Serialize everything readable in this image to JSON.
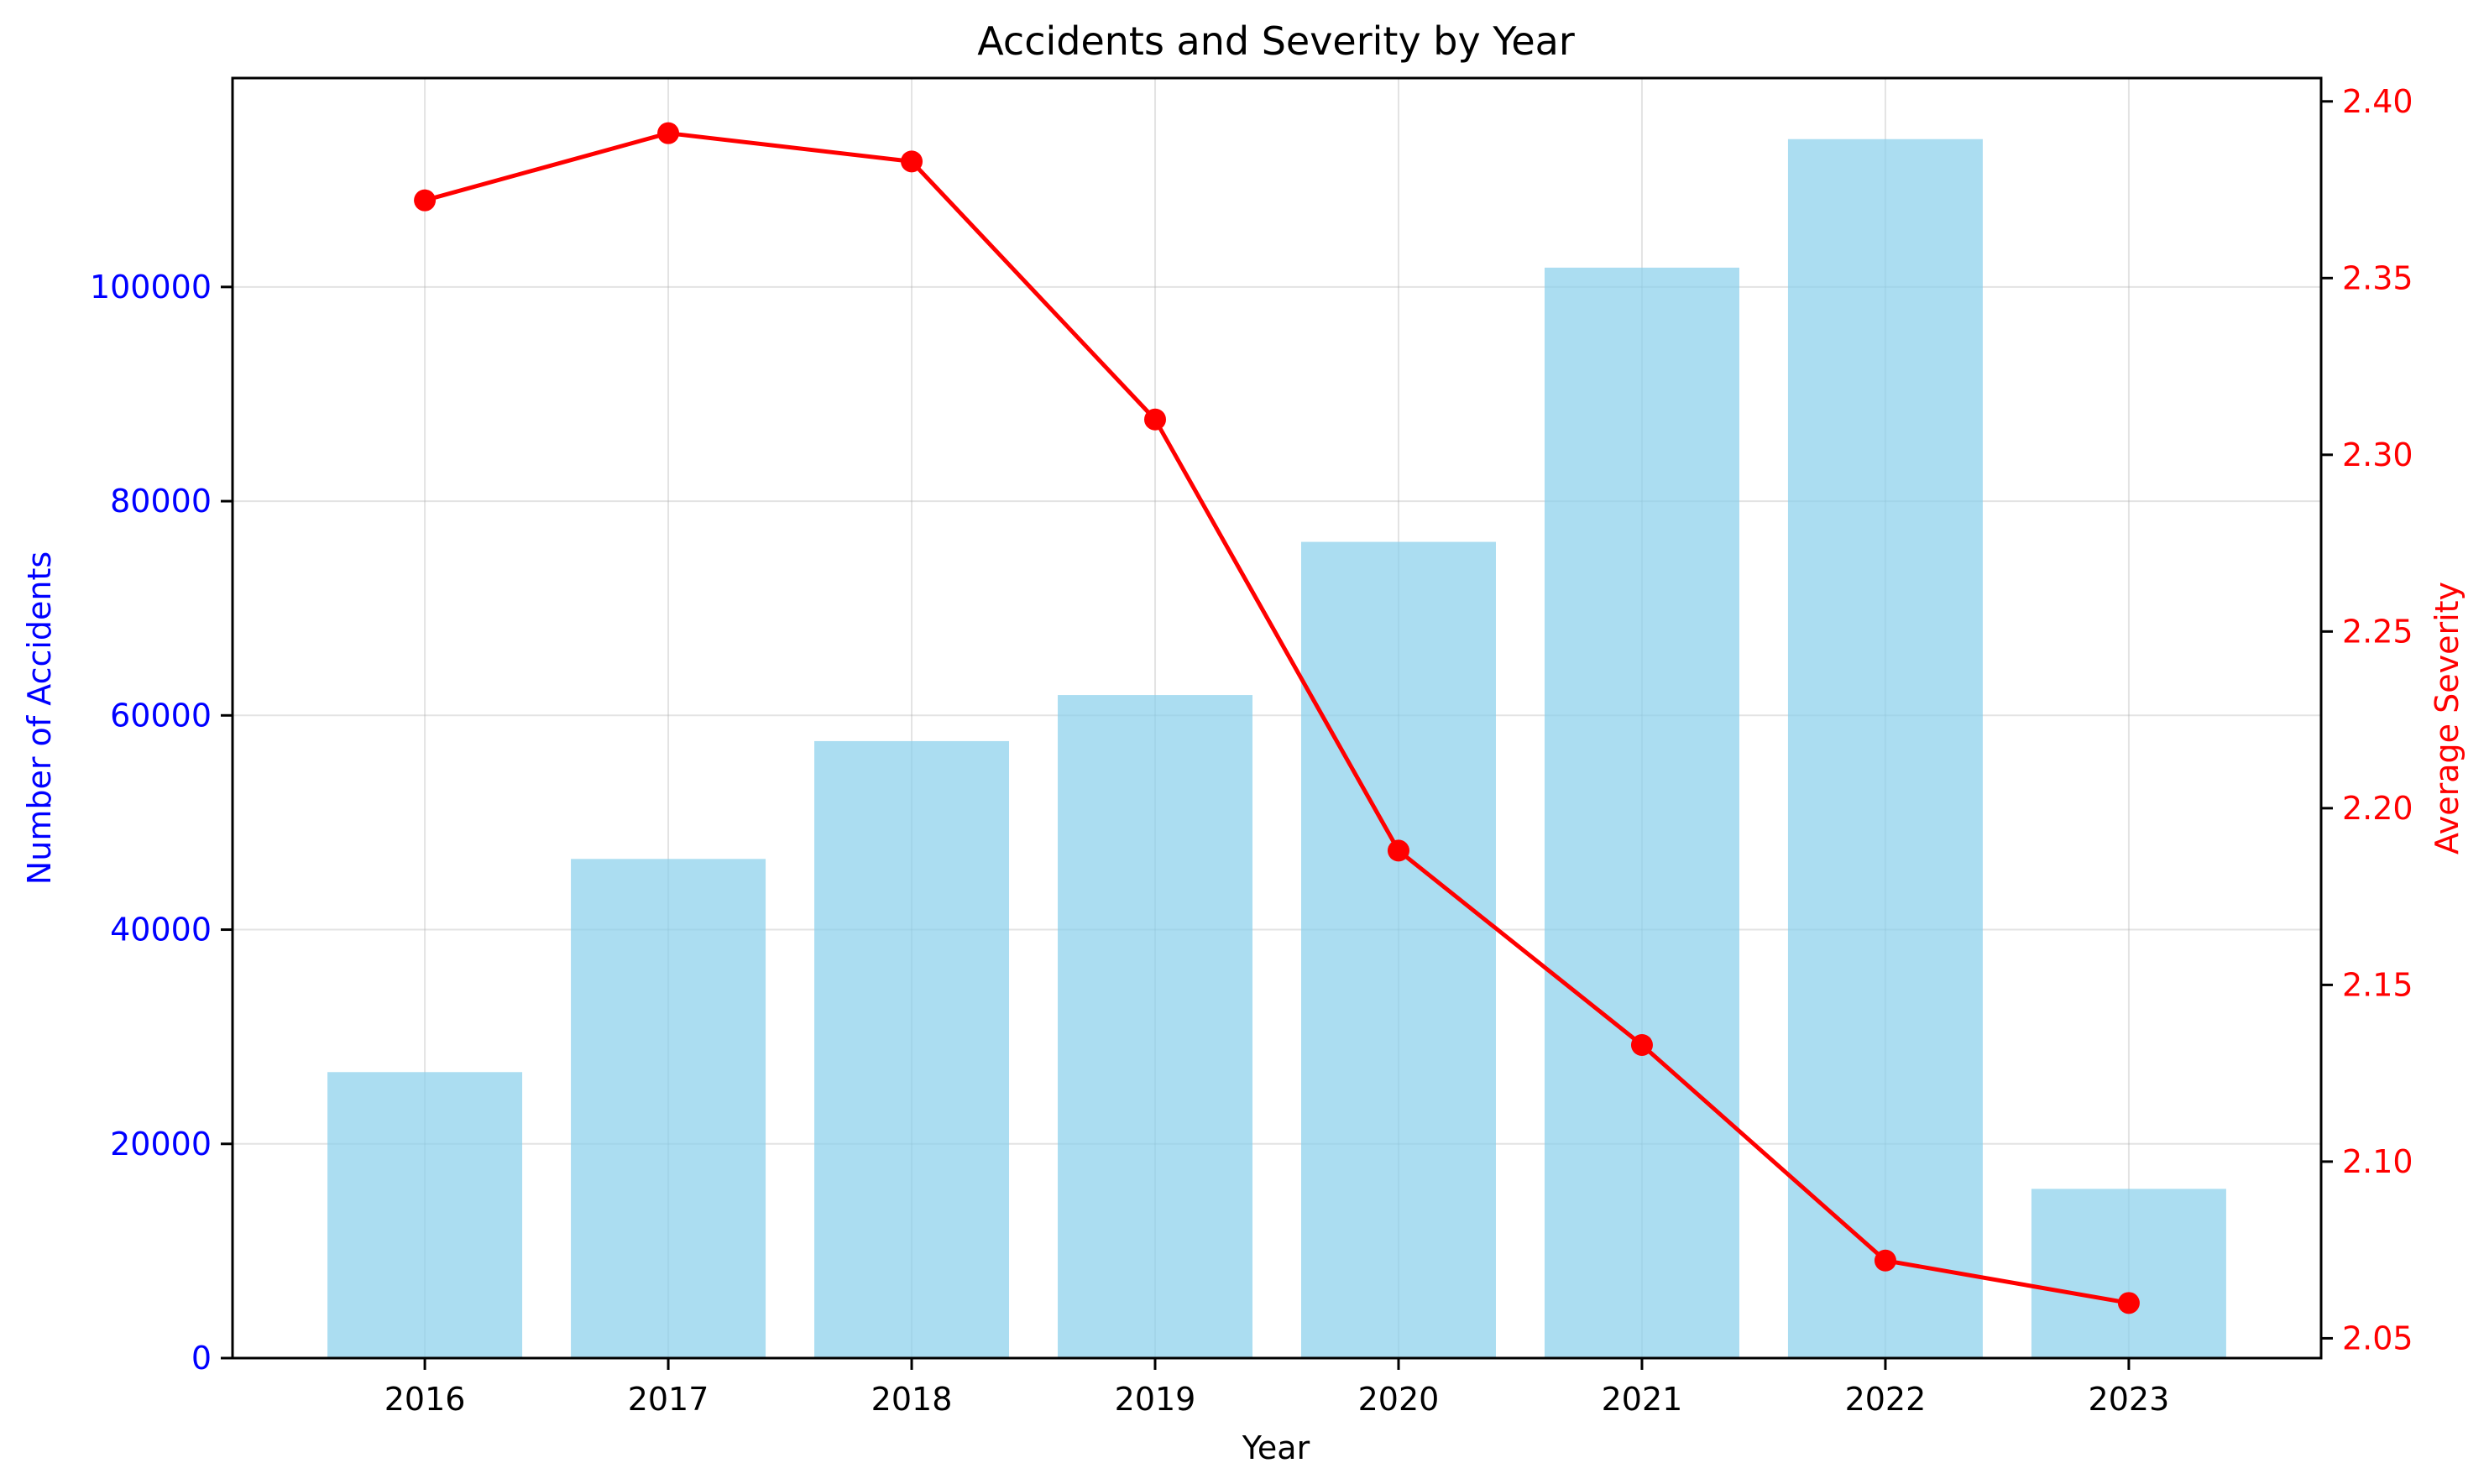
{
  "chart_data": {
    "type": "bar",
    "title": "Accidents and Severity by Year",
    "xlabel": "Year",
    "categories": [
      "2016",
      "2017",
      "2018",
      "2019",
      "2020",
      "2021",
      "2022",
      "2023"
    ],
    "series": [
      {
        "type": "bar",
        "axis": "left",
        "values": [
          26700,
          46600,
          57600,
          61900,
          76200,
          101800,
          113800,
          15800
        ],
        "color": "#87CEEB"
      },
      {
        "type": "line",
        "axis": "right",
        "values": [
          2.372,
          2.391,
          2.383,
          2.31,
          2.188,
          2.133,
          2.072,
          2.06
        ],
        "color": "#FF0000",
        "marker": "circle"
      }
    ],
    "ylabel": "Number of Accidents",
    "ylabel_color": "#0000FF",
    "ylim": [
      0,
      119500
    ],
    "yticks": [
      "0",
      "20000",
      "40000",
      "60000",
      "80000",
      "100000"
    ],
    "ytick_values": [
      0,
      20000,
      40000,
      60000,
      80000,
      100000
    ],
    "y2label": "Average Severity",
    "y2label_color": "#FF0000",
    "y2lim": [
      2.0444,
      2.4066
    ],
    "y2ticks": [
      "2.05",
      "2.10",
      "2.15",
      "2.20",
      "2.25",
      "2.30",
      "2.35",
      "2.40"
    ],
    "y2tick_values": [
      2.05,
      2.1,
      2.15,
      2.2,
      2.25,
      2.3,
      2.35,
      2.4
    ],
    "xlim": [
      -0.79,
      7.79
    ],
    "grid": true
  }
}
